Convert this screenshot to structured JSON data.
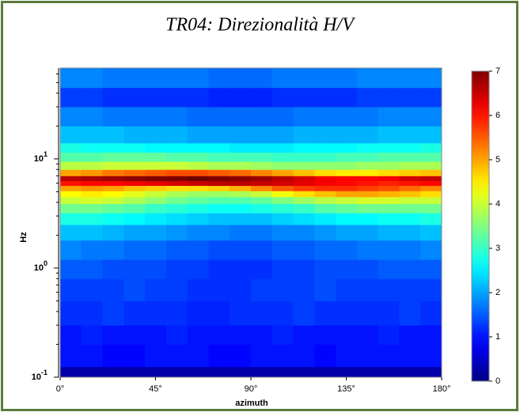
{
  "chart_data": {
    "type": "heatmap",
    "title": "TR04: Direzionalità H/V",
    "xlabel": "azimuth",
    "ylabel": "Hz",
    "x_bins": [
      0,
      10,
      20,
      30,
      40,
      50,
      60,
      70,
      80,
      90,
      100,
      110,
      120,
      130,
      140,
      150,
      160,
      170,
      180
    ],
    "y_bins": [
      0.1,
      0.125,
      0.2,
      0.3,
      0.5,
      0.8,
      1.2,
      1.8,
      2.5,
      3.2,
      3.9,
      4.5,
      5.1,
      5.7,
      6.3,
      7.0,
      8.0,
      9.5,
      11.5,
      14,
      20,
      30,
      45,
      68
    ],
    "z": [
      [
        0.3,
        0.3,
        0.3,
        0.3,
        0.3,
        0.3,
        0.3,
        0.3,
        0.3,
        0.3,
        0.3,
        0.3,
        0.3,
        0.3,
        0.3,
        0.3,
        0.3,
        0.3
      ],
      [
        1.0,
        1.0,
        0.9,
        0.9,
        1.0,
        1.0,
        1.0,
        0.9,
        0.9,
        1.0,
        1.0,
        1.0,
        0.9,
        1.0,
        1.0,
        1.0,
        1.0,
        1.0
      ],
      [
        1.0,
        1.1,
        1.0,
        1.0,
        1.0,
        1.1,
        1.0,
        1.0,
        1.0,
        1.0,
        1.1,
        1.0,
        1.0,
        1.0,
        1.0,
        1.1,
        1.0,
        1.0
      ],
      [
        1.2,
        1.2,
        1.3,
        1.2,
        1.2,
        1.2,
        1.1,
        1.1,
        1.2,
        1.2,
        1.2,
        1.3,
        1.2,
        1.2,
        1.2,
        1.2,
        1.3,
        1.2
      ],
      [
        1.3,
        1.3,
        1.3,
        1.4,
        1.3,
        1.3,
        1.2,
        1.2,
        1.2,
        1.3,
        1.3,
        1.3,
        1.4,
        1.3,
        1.3,
        1.3,
        1.3,
        1.3
      ],
      [
        1.5,
        1.5,
        1.4,
        1.4,
        1.4,
        1.3,
        1.3,
        1.2,
        1.2,
        1.2,
        1.3,
        1.3,
        1.4,
        1.4,
        1.4,
        1.5,
        1.5,
        1.5
      ],
      [
        1.8,
        1.7,
        1.7,
        1.6,
        1.6,
        1.5,
        1.5,
        1.4,
        1.4,
        1.4,
        1.5,
        1.5,
        1.6,
        1.6,
        1.7,
        1.7,
        1.7,
        1.8
      ],
      [
        2.2,
        2.2,
        2.1,
        2.0,
        2.0,
        1.9,
        1.8,
        1.8,
        1.7,
        1.7,
        1.8,
        1.8,
        1.9,
        2.0,
        2.0,
        2.1,
        2.1,
        2.2
      ],
      [
        2.8,
        2.8,
        2.7,
        2.6,
        2.5,
        2.4,
        2.3,
        2.2,
        2.2,
        2.2,
        2.3,
        2.4,
        2.5,
        2.6,
        2.6,
        2.7,
        2.7,
        2.8
      ],
      [
        3.4,
        3.4,
        3.3,
        3.2,
        3.0,
        2.9,
        2.8,
        2.7,
        2.7,
        2.8,
        2.9,
        3.0,
        3.2,
        3.3,
        3.4,
        3.4,
        3.4,
        3.4
      ],
      [
        4.0,
        4.1,
        4.0,
        3.8,
        3.6,
        3.4,
        3.3,
        3.2,
        3.2,
        3.3,
        3.5,
        3.7,
        3.9,
        4.0,
        4.1,
        4.1,
        4.0,
        4.0
      ],
      [
        4.4,
        4.5,
        4.4,
        4.2,
        4.0,
        3.8,
        3.7,
        3.7,
        3.8,
        4.0,
        4.3,
        4.6,
        4.8,
        5.0,
        5.0,
        4.9,
        4.8,
        4.6
      ],
      [
        5.0,
        5.1,
        5.0,
        4.8,
        4.7,
        4.6,
        4.6,
        4.7,
        4.9,
        5.2,
        5.5,
        5.7,
        5.8,
        5.8,
        5.7,
        5.6,
        5.4,
        5.2
      ],
      [
        6.0,
        6.1,
        6.1,
        6.2,
        6.3,
        6.4,
        6.5,
        6.6,
        6.6,
        6.5,
        6.4,
        6.3,
        6.2,
        6.1,
        6.0,
        5.9,
        6.0,
        6.1
      ],
      [
        6.6,
        6.7,
        6.8,
        6.9,
        7.0,
        7.0,
        7.1,
        7.0,
        6.9,
        6.8,
        6.6,
        6.4,
        6.2,
        6.1,
        6.1,
        6.2,
        6.4,
        6.5
      ],
      [
        5.0,
        5.1,
        5.3,
        5.4,
        5.5,
        5.6,
        5.6,
        5.5,
        5.4,
        5.2,
        5.0,
        4.8,
        4.6,
        4.5,
        4.5,
        4.6,
        4.7,
        4.8
      ],
      [
        3.9,
        3.9,
        4.0,
        4.0,
        4.0,
        4.0,
        3.9,
        3.8,
        3.8,
        3.7,
        3.6,
        3.6,
        3.6,
        3.6,
        3.7,
        3.7,
        3.8,
        3.8
      ],
      [
        3.2,
        3.2,
        3.3,
        3.3,
        3.3,
        3.2,
        3.2,
        3.1,
        3.1,
        3.1,
        3.0,
        3.0,
        3.0,
        3.1,
        3.1,
        3.2,
        3.2,
        3.2
      ],
      [
        2.8,
        2.7,
        2.7,
        2.7,
        2.6,
        2.6,
        2.6,
        2.6,
        2.5,
        2.5,
        2.5,
        2.6,
        2.6,
        2.6,
        2.7,
        2.7,
        2.7,
        2.8
      ],
      [
        2.2,
        2.2,
        2.2,
        2.1,
        2.1,
        2.1,
        2.0,
        2.0,
        2.0,
        2.0,
        2.0,
        2.1,
        2.1,
        2.1,
        2.1,
        2.2,
        2.2,
        2.2
      ],
      [
        1.8,
        1.8,
        1.7,
        1.7,
        1.7,
        1.7,
        1.6,
        1.6,
        1.6,
        1.6,
        1.6,
        1.7,
        1.7,
        1.7,
        1.7,
        1.8,
        1.8,
        1.8
      ],
      [
        1.3,
        1.3,
        1.2,
        1.2,
        1.2,
        1.2,
        1.2,
        1.1,
        1.1,
        1.1,
        1.2,
        1.2,
        1.2,
        1.2,
        1.3,
        1.3,
        1.3,
        1.3
      ],
      [
        1.8,
        1.8,
        1.7,
        1.7,
        1.7,
        1.7,
        1.7,
        1.6,
        1.6,
        1.6,
        1.7,
        1.7,
        1.7,
        1.7,
        1.8,
        1.8,
        1.8,
        1.8
      ]
    ],
    "xlim": [
      0,
      180
    ],
    "xticks": [
      {
        "value": 0,
        "label": "0°"
      },
      {
        "value": 45,
        "label": "45°"
      },
      {
        "value": 90,
        "label": "90°"
      },
      {
        "value": 135,
        "label": "135°"
      },
      {
        "value": 180,
        "label": "180°"
      }
    ],
    "ylim": [
      0.1,
      68
    ],
    "log_y": true,
    "yticks": [
      {
        "value": 0.1,
        "label": "10",
        "exponent": "-1"
      },
      {
        "value": 1,
        "label": "10",
        "exponent": "0"
      },
      {
        "value": 10,
        "label": "10",
        "exponent": "1"
      }
    ],
    "zlim": [
      0,
      7
    ],
    "zticks": [
      0,
      1,
      2,
      3,
      4,
      5,
      6,
      7
    ],
    "colormap": "jet"
  }
}
